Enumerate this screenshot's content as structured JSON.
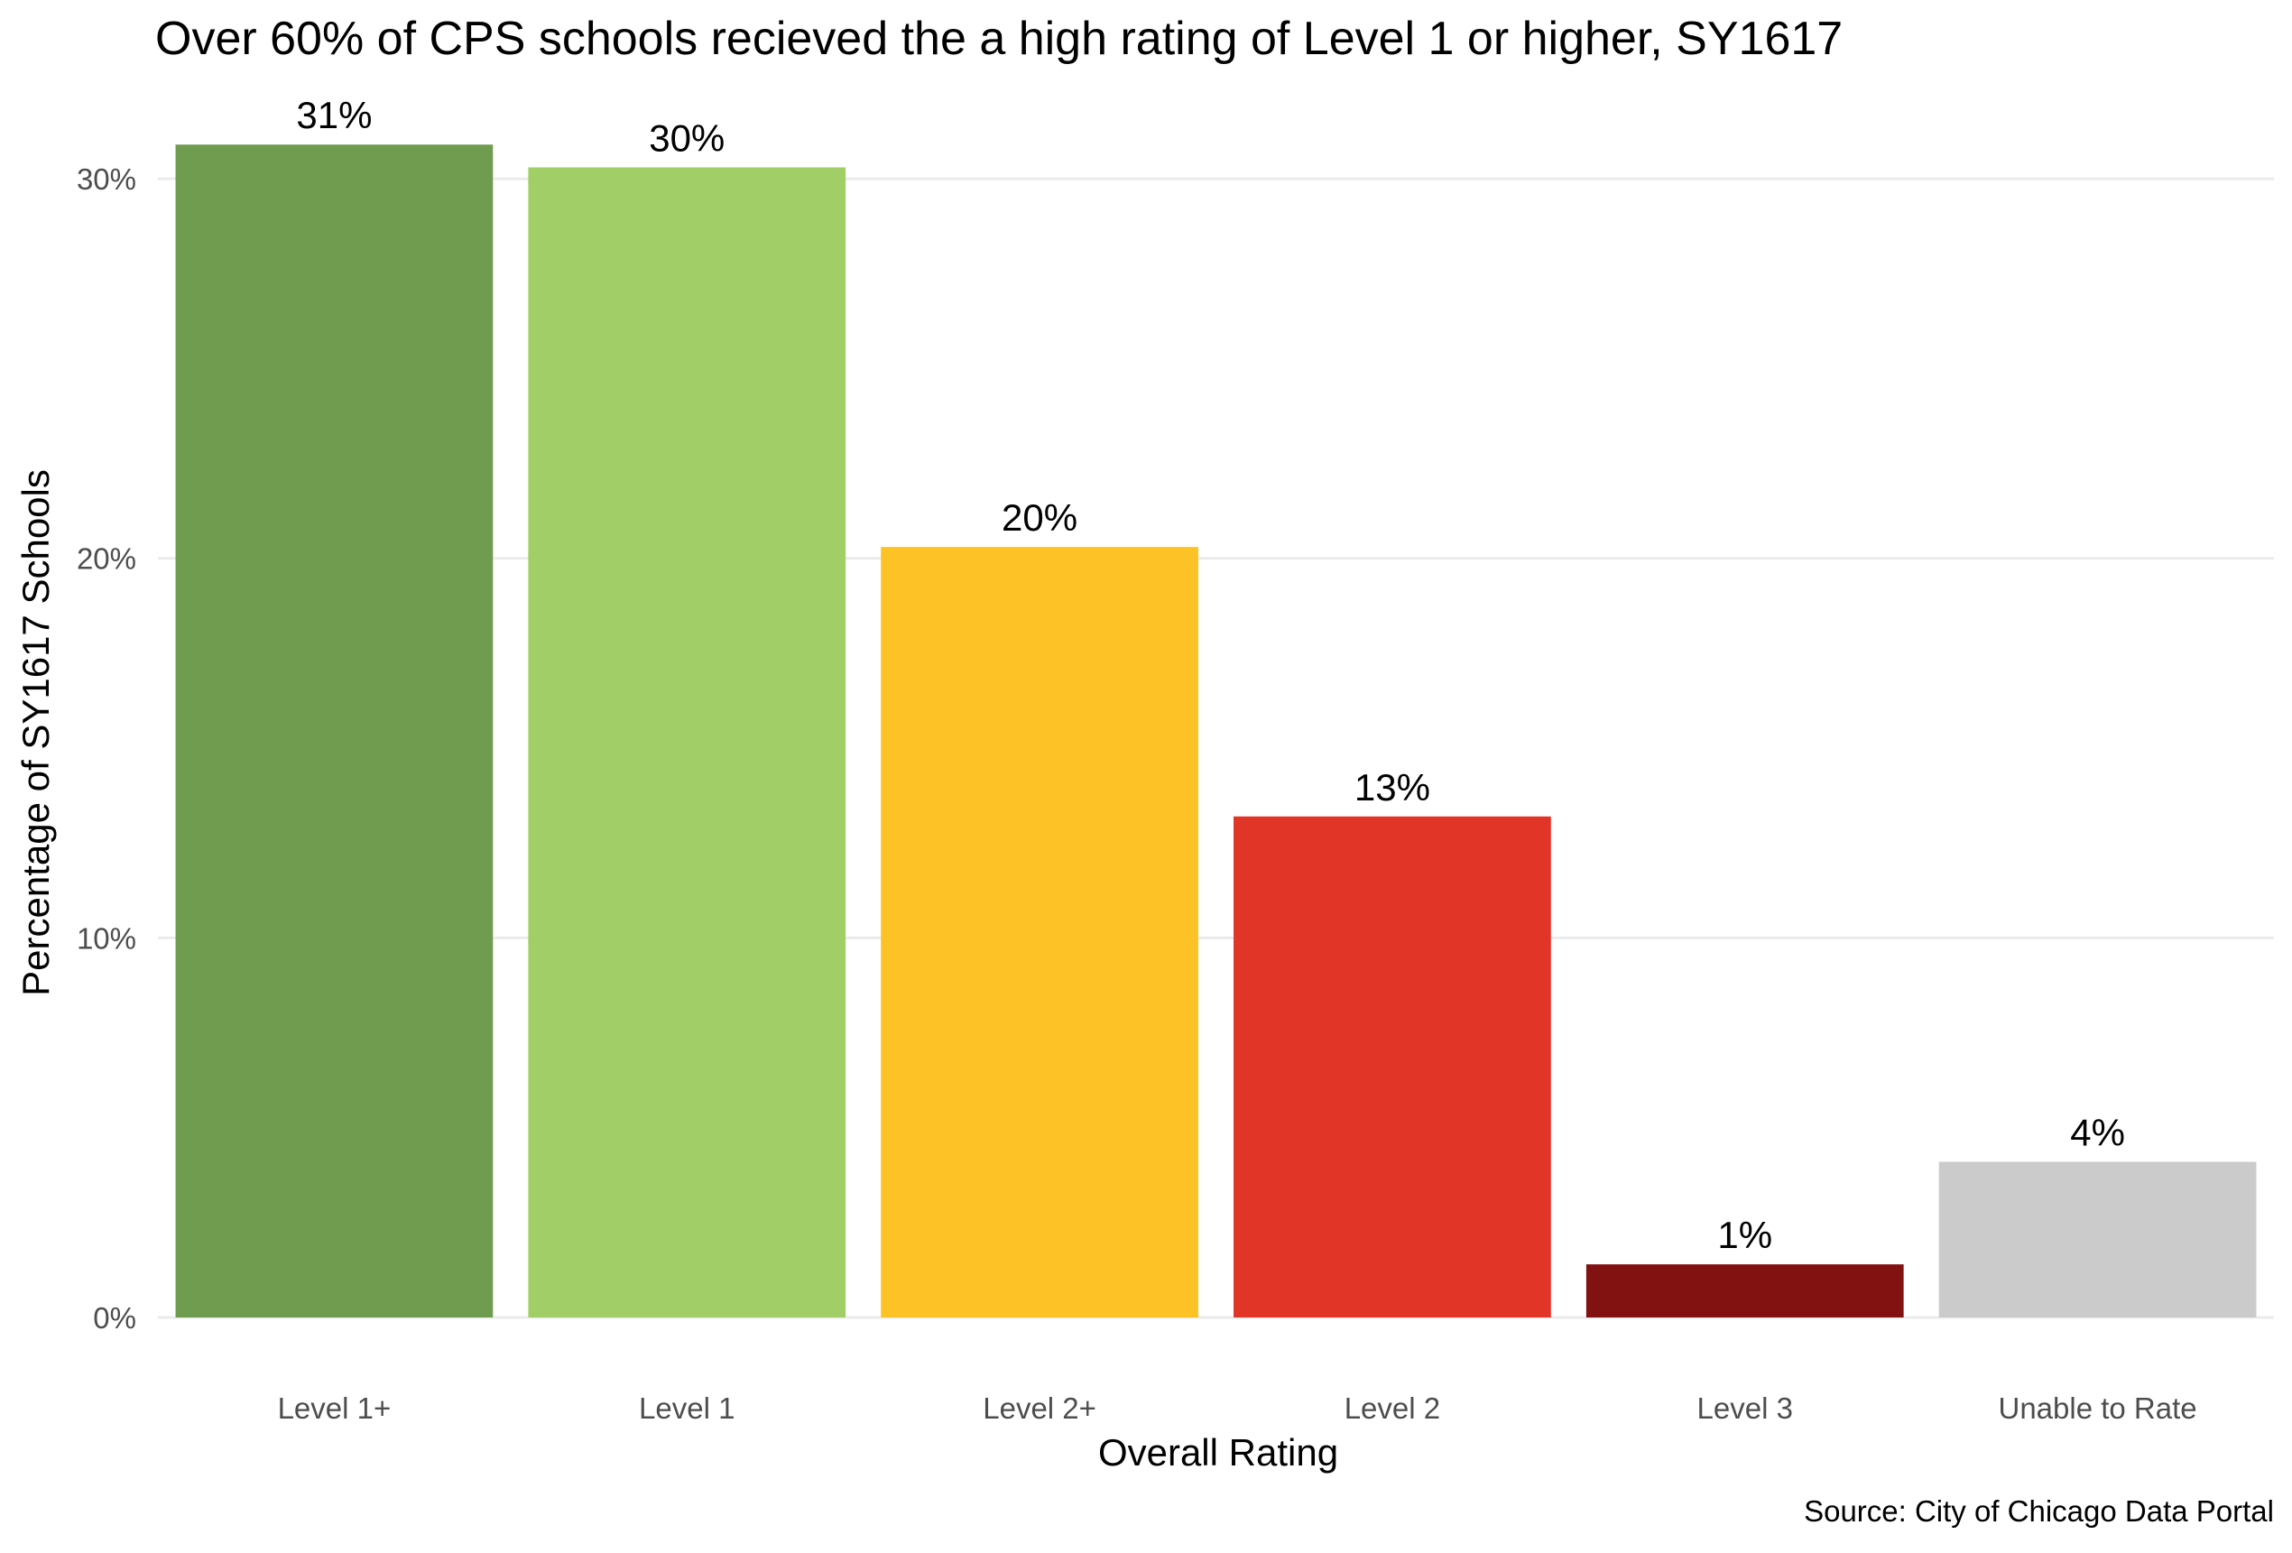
{
  "chart_data": {
    "type": "bar",
    "title": "Over 60% of CPS schools recieved the a high rating of Level 1 or higher, SY1617",
    "xlabel": "Overall Rating",
    "ylabel": "Percentage of SY1617 Schools",
    "caption": "Source: City of Chicago Data Portal",
    "categories": [
      "Level 1+",
      "Level 1",
      "Level 2+",
      "Level 2",
      "Level 3",
      "Unable to Rate"
    ],
    "values": [
      30.9,
      30.3,
      20.3,
      13.2,
      1.4,
      4.1
    ],
    "value_labels": [
      "31%",
      "30%",
      "20%",
      "13%",
      "1%",
      "4%"
    ],
    "colors": [
      "#6f9c4e",
      "#a1ce67",
      "#fdc326",
      "#e13528",
      "#821212",
      "#cbcbcb"
    ],
    "ylim": [
      0,
      31.5
    ],
    "yticks": [
      0,
      10,
      20,
      30
    ],
    "ytick_labels": [
      "0%",
      "10%",
      "20%",
      "30%"
    ],
    "grid": true,
    "legend": "none"
  }
}
